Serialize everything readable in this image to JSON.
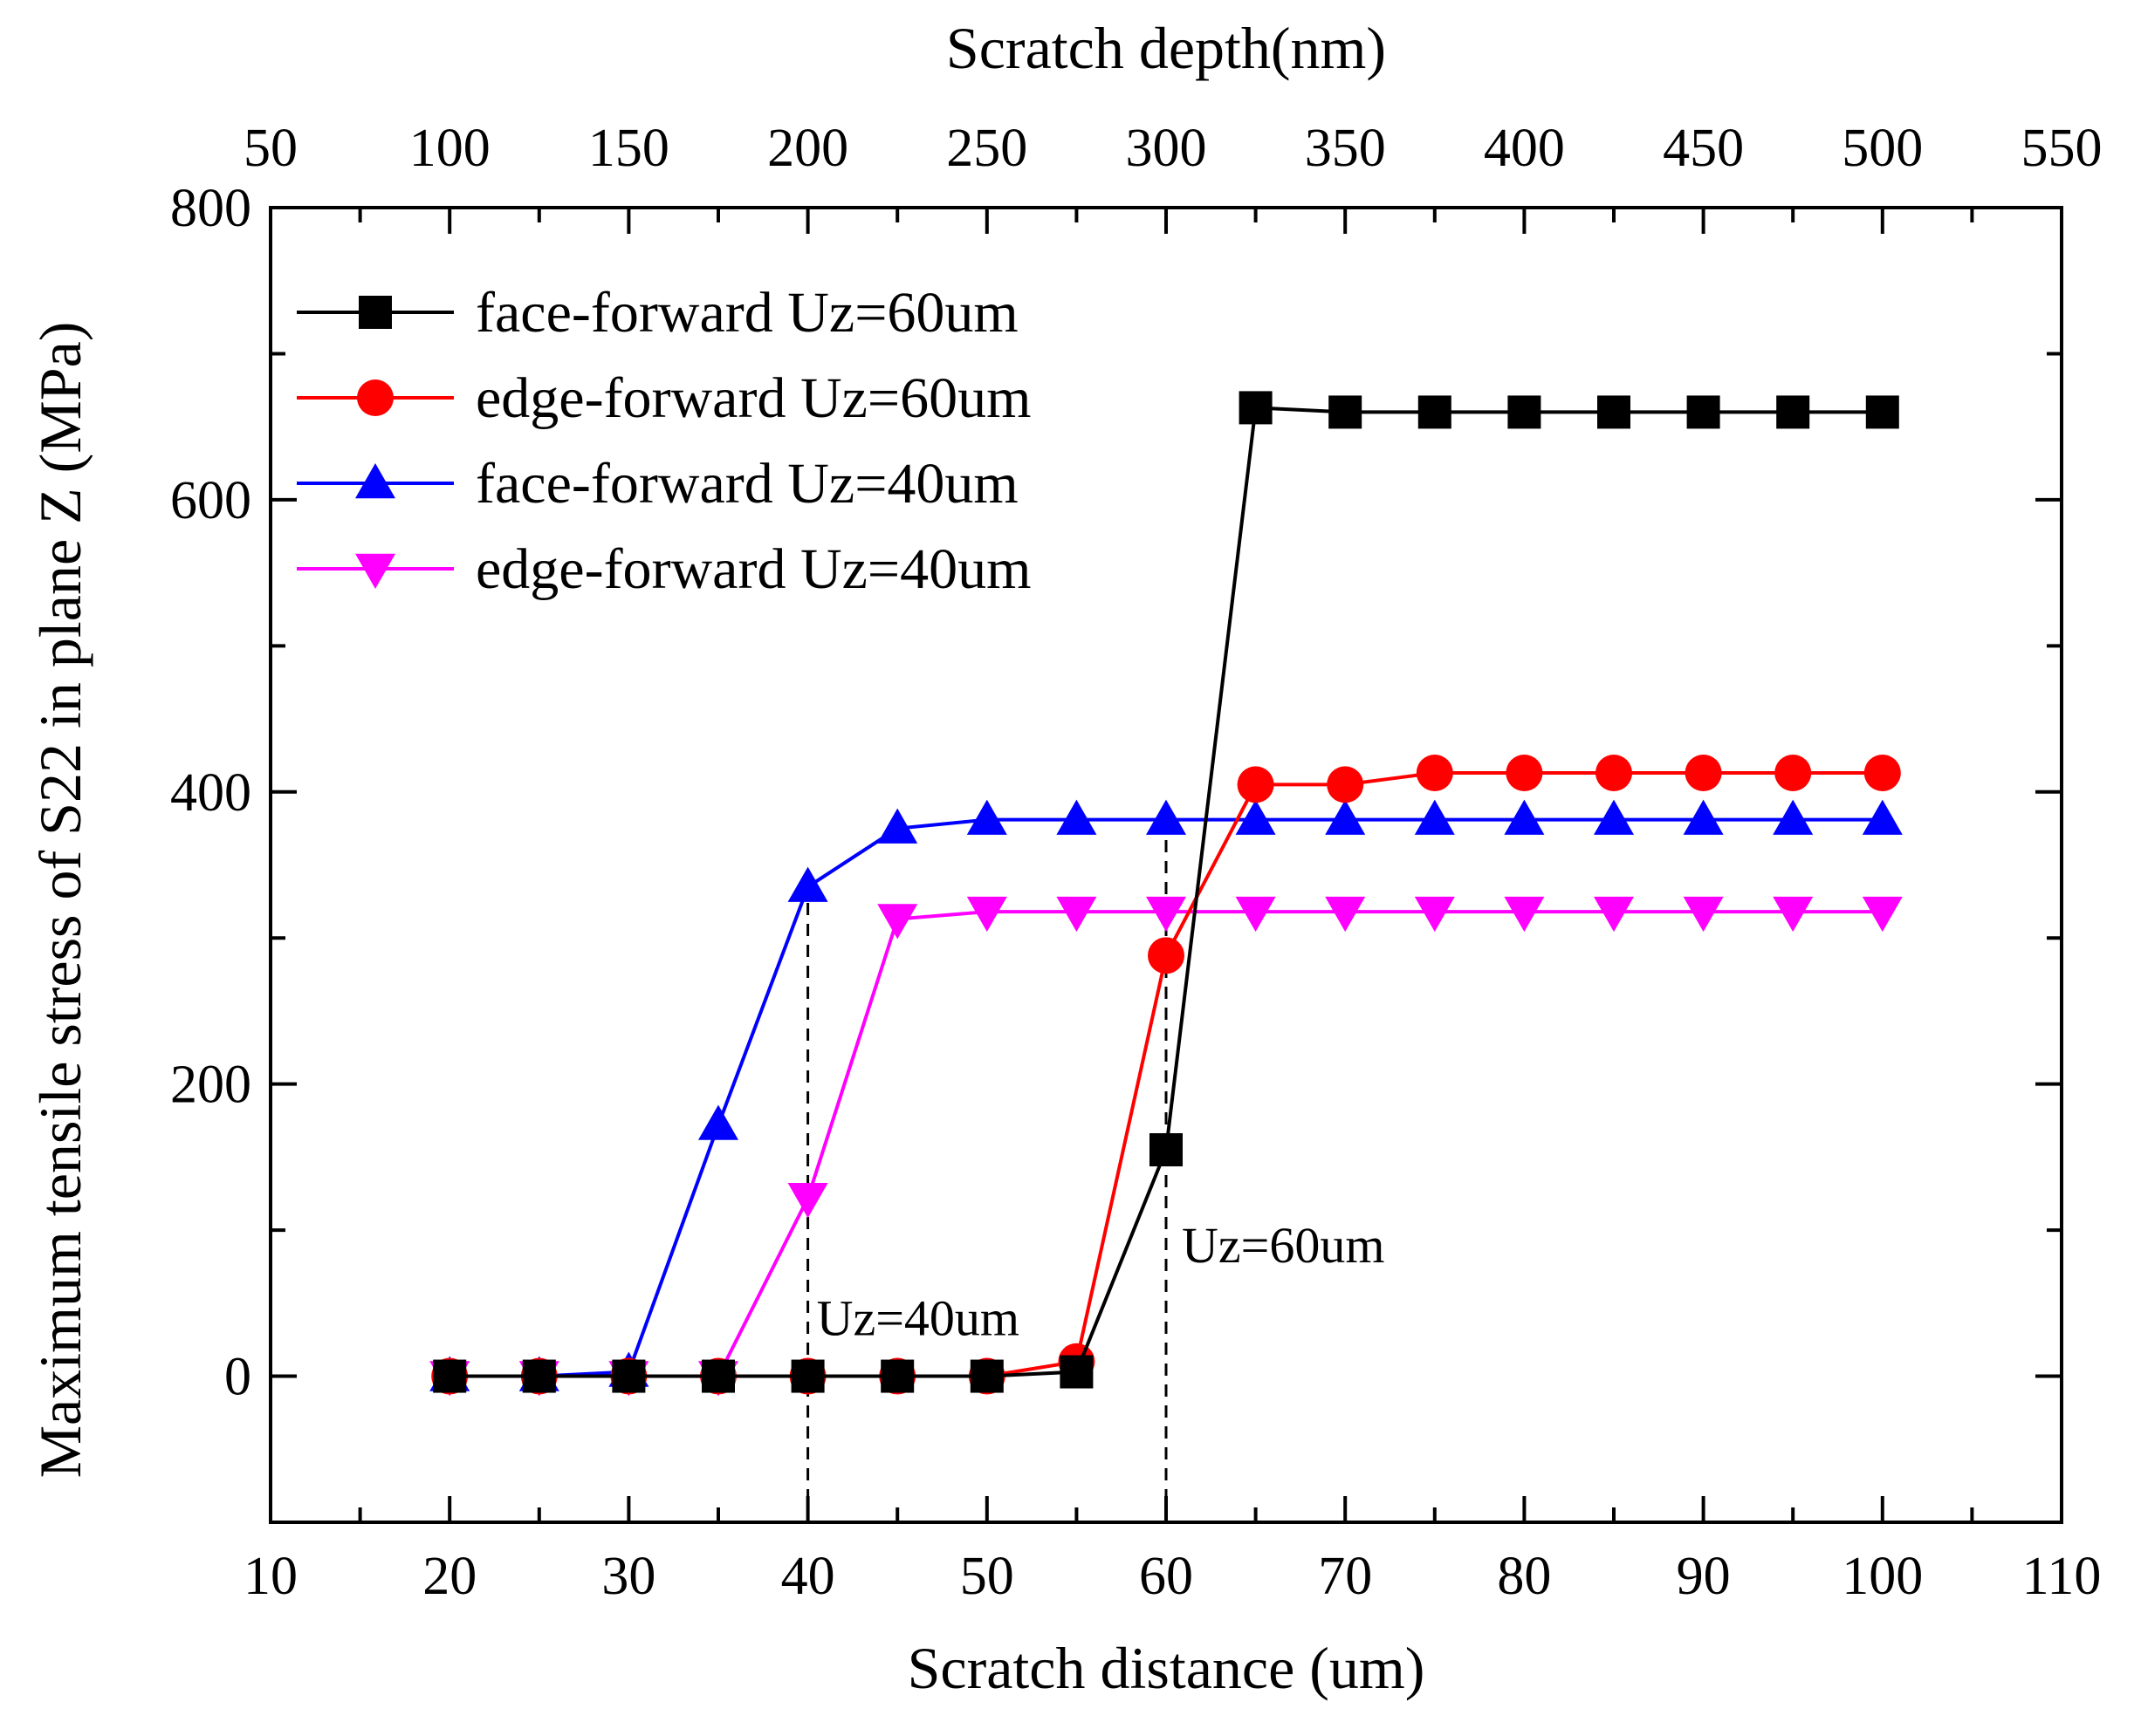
{
  "chart_data": {
    "type": "line",
    "title": "",
    "xlabel": "Scratch distance (um)",
    "ylabel": "Maximum tensile stress of S22 in plane Z (MPa)",
    "xlim": [
      10,
      110
    ],
    "ylim": [
      -100,
      800
    ],
    "xticks": [
      10,
      20,
      30,
      40,
      50,
      60,
      70,
      80,
      90,
      100,
      110
    ],
    "yticks": [
      0,
      200,
      400,
      600,
      800
    ],
    "top_axis": {
      "label": "Scratch depth(nm)",
      "ticks": [
        50,
        100,
        150,
        200,
        250,
        300,
        350,
        400,
        450,
        500,
        550
      ]
    },
    "grid": false,
    "legend_position": "top-left",
    "x": [
      20,
      25,
      30,
      35,
      40,
      45,
      50,
      55,
      60,
      65,
      70,
      75,
      80,
      85,
      90,
      95,
      100
    ],
    "series": [
      {
        "name": "face-forward Uz=60um",
        "color": "#000000",
        "marker": "square",
        "values": [
          0,
          0,
          0,
          0,
          0,
          0,
          0,
          3,
          155,
          663,
          660,
          660,
          660,
          660,
          660,
          660,
          660
        ]
      },
      {
        "name": "edge-forward Uz=60um",
        "color": "#ff0000",
        "marker": "circle",
        "values": [
          0,
          0,
          0,
          0,
          0,
          0,
          0,
          10,
          288,
          405,
          405,
          413,
          413,
          413,
          413,
          413,
          413
        ]
      },
      {
        "name": "face-forward Uz=40um",
        "color": "#0000ff",
        "marker": "triangle-up",
        "values": [
          0,
          0,
          3,
          172,
          335,
          375,
          381,
          381,
          381,
          381,
          381,
          381,
          381,
          381,
          381,
          381,
          381
        ]
      },
      {
        "name": "edge-forward Uz=40um",
        "color": "#ff00ff",
        "marker": "triangle-down",
        "values": [
          0,
          0,
          0,
          0,
          122,
          313,
          318,
          318,
          318,
          318,
          318,
          318,
          318,
          318,
          318,
          318,
          318
        ]
      }
    ],
    "annotations": [
      {
        "text": "Uz=40um",
        "x": 40,
        "y_from": -100,
        "y_to": 335
      },
      {
        "text": "Uz=60um",
        "x": 60,
        "y_from": -100,
        "y_to": 381
      }
    ]
  }
}
